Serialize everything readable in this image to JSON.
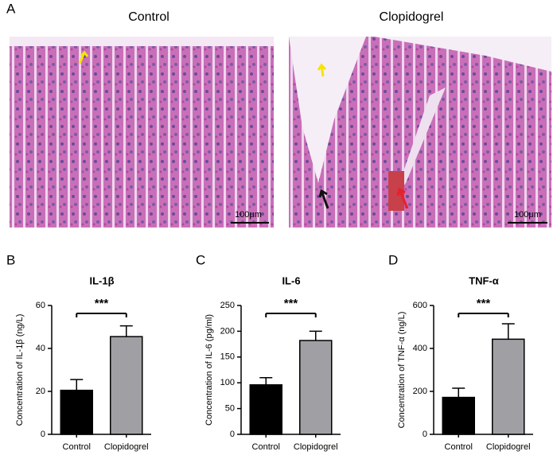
{
  "figure": {
    "panel_a": {
      "label": "A",
      "images": [
        {
          "title": "Control",
          "scale_bar": "100μm"
        },
        {
          "title": "Clopidogrel",
          "scale_bar": "100μm"
        }
      ]
    }
  },
  "chart_data": [
    {
      "type": "bar",
      "panel_label": "B",
      "title": "IL-1β",
      "y_label": "Concentration of IL-1β (ng/L)",
      "categories": [
        "Control",
        "Clopidogrel"
      ],
      "values": [
        20.5,
        45.5
      ],
      "errors": [
        5,
        5
      ],
      "colors": [
        "#000000",
        "#a0a0a4"
      ],
      "ylim": [
        0,
        60
      ],
      "yticks": [
        0,
        20,
        40,
        60
      ],
      "annotation": "***"
    },
    {
      "type": "bar",
      "panel_label": "C",
      "title": "IL-6",
      "y_label": "Concentration of IL-6 (pg/ml)",
      "categories": [
        "Control",
        "Clopidogrel"
      ],
      "values": [
        96,
        182
      ],
      "errors": [
        14,
        18
      ],
      "colors": [
        "#000000",
        "#a0a0a4"
      ],
      "ylim": [
        0,
        250
      ],
      "yticks": [
        0,
        50,
        100,
        150,
        200,
        250
      ],
      "annotation": "***"
    },
    {
      "type": "bar",
      "panel_label": "D",
      "title": "TNF-α",
      "y_label": "Concentration of TNF-α (ng/L)",
      "categories": [
        "Control",
        "Clopidogrel"
      ],
      "values": [
        172,
        443
      ],
      "errors": [
        43,
        72
      ],
      "colors": [
        "#000000",
        "#a0a0a4"
      ],
      "ylim": [
        0,
        600
      ],
      "yticks": [
        0,
        200,
        400,
        600
      ],
      "annotation": "***"
    }
  ]
}
